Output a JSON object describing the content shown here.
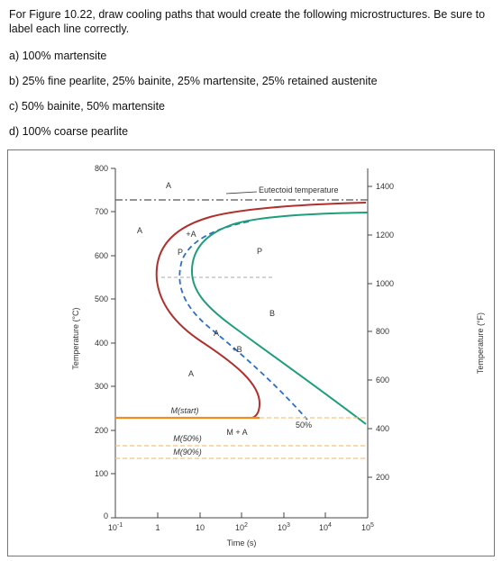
{
  "problem": {
    "intro": "For Figure 10.22, draw cooling paths that would create the following microstructures. Be sure to label each line correctly.",
    "parts": [
      "a) 100% martensite",
      "b) 25% fine pearlite, 25% bainite, 25% martensite, 25% retained austenite",
      "c) 50% bainite, 50% martensite",
      "d) 100% coarse pearlite"
    ]
  },
  "figure": {
    "left_axis_label": "Temperature (°C)",
    "right_axis_label": "Temperature (°F)",
    "x_axis_label": "Time (s)",
    "left_ticks": [
      "800",
      "700",
      "600",
      "500",
      "400",
      "300",
      "200",
      "100",
      "0"
    ],
    "right_ticks": [
      "1400",
      "1200",
      "1000",
      "800",
      "600",
      "400",
      "200"
    ],
    "x_ticks": [
      {
        "base": "10",
        "exp": "-1"
      },
      {
        "base": "1",
        "exp": ""
      },
      {
        "base": "10",
        "exp": ""
      },
      {
        "base": "10",
        "exp": "2"
      },
      {
        "base": "10",
        "exp": "3"
      },
      {
        "base": "10",
        "exp": "4"
      },
      {
        "base": "10",
        "exp": "5"
      }
    ],
    "eutectoid_label": "Eutectoid temperature",
    "region_labels": {
      "a_top": "A",
      "a_left": "A",
      "a_lower": "A",
      "a_plus_p": "+A",
      "p_small": "P",
      "pearlite": "P",
      "bainite": "B",
      "a_b": "A",
      "plus_b": "+B",
      "m_plus_a": "M + A",
      "m_start": "M(start)",
      "m50": "M(50%)",
      "m90": "M(90%)",
      "pct50": "50%"
    },
    "colors": {
      "start_curve": "#b0302e",
      "finish_curve": "#1e9e7a",
      "fifty_curve": "#2a6fc9",
      "m_start_line": "#f28c1c",
      "m_dashed": "#f3c28a"
    }
  }
}
